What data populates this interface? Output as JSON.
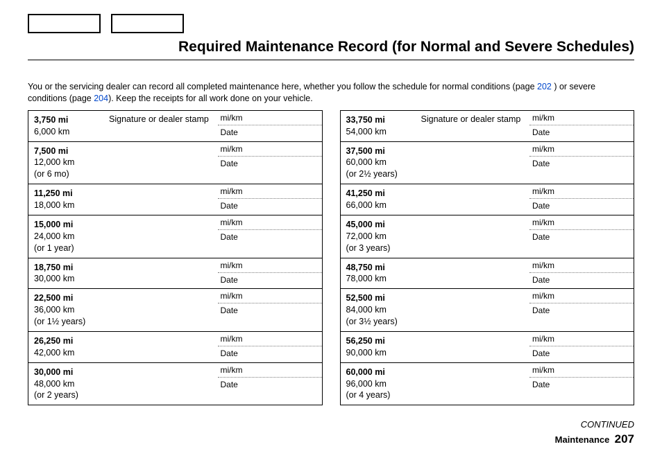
{
  "title": "Required Maintenance Record (for Normal and Severe Schedules)",
  "intro": {
    "part1": "You or the servicing dealer can record all completed maintenance here, whether you follow the schedule for normal conditions (page ",
    "link1": "202",
    "part2": " ) or severe conditions (page ",
    "link2": "204",
    "part3": "). Keep the receipts for all work done on your vehicle."
  },
  "signature_header": "Signature or dealer stamp",
  "field_mi_km": "mi/km",
  "field_date": "Date",
  "left_rows": [
    {
      "mi": "3,750 mi",
      "km": "6,000 km",
      "extra": ""
    },
    {
      "mi": "7,500 mi",
      "km": "12,000 km",
      "extra": "(or 6 mo)"
    },
    {
      "mi": "11,250 mi",
      "km": "18,000 km",
      "extra": ""
    },
    {
      "mi": "15,000 mi",
      "km": "24,000 km",
      "extra": "(or 1 year)"
    },
    {
      "mi": "18,750 mi",
      "km": "30,000 km",
      "extra": ""
    },
    {
      "mi": "22,500 mi",
      "km": "36,000 km",
      "extra": "(or 1½ years)"
    },
    {
      "mi": "26,250 mi",
      "km": "42,000 km",
      "extra": ""
    },
    {
      "mi": "30,000 mi",
      "km": "48,000 km",
      "extra": "(or 2 years)"
    }
  ],
  "right_rows": [
    {
      "mi": "33,750 mi",
      "km": "54,000 km",
      "extra": ""
    },
    {
      "mi": "37,500 mi",
      "km": "60,000 km",
      "extra": "(or 2½ years)"
    },
    {
      "mi": "41,250 mi",
      "km": "66,000 km",
      "extra": ""
    },
    {
      "mi": "45,000 mi",
      "km": "72,000 km",
      "extra": "(or 3 years)"
    },
    {
      "mi": "48,750 mi",
      "km": "78,000 km",
      "extra": ""
    },
    {
      "mi": "52,500 mi",
      "km": "84,000 km",
      "extra": "(or 3½ years)"
    },
    {
      "mi": "56,250 mi",
      "km": "90,000 km",
      "extra": ""
    },
    {
      "mi": "60,000 mi",
      "km": "96,000 km",
      "extra": "(or 4 years)"
    }
  ],
  "footer": {
    "continued": "CONTINUED",
    "section": "Maintenance",
    "page": "207"
  }
}
